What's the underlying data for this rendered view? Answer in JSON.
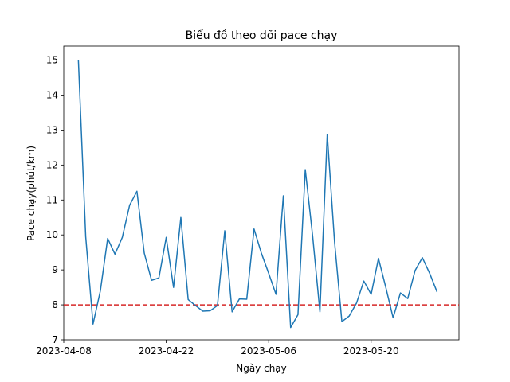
{
  "chart_data": {
    "type": "line",
    "title": "Biểu đồ theo dõi pace chạy",
    "xlabel": "Ngày chạy",
    "ylabel": "Pace chạy(phút/km)",
    "x_ticks": [
      "2023-04-08",
      "2023-04-22",
      "2023-05-06",
      "2023-05-20"
    ],
    "y_ticks": [
      7,
      8,
      9,
      10,
      11,
      12,
      13,
      14,
      15
    ],
    "xlim": [
      "2023-04-08",
      "2023-06-01"
    ],
    "ylim": [
      7,
      15.4
    ],
    "grid": false,
    "line_color": "#1f77b4",
    "reference_line": {
      "y": 8,
      "color": "#d62728",
      "style": "dashed"
    },
    "series": [
      {
        "x": [
          "2023-04-10",
          "2023-04-11",
          "2023-04-12",
          "2023-04-13",
          "2023-04-14",
          "2023-04-15",
          "2023-04-16",
          "2023-04-17",
          "2023-04-18",
          "2023-04-19",
          "2023-04-20",
          "2023-04-21",
          "2023-04-22",
          "2023-04-23",
          "2023-04-24",
          "2023-04-25",
          "2023-04-26",
          "2023-04-27",
          "2023-04-28",
          "2023-04-29",
          "2023-04-30",
          "2023-05-01",
          "2023-05-02",
          "2023-05-03",
          "2023-05-04",
          "2023-05-05",
          "2023-05-06",
          "2023-05-07",
          "2023-05-08",
          "2023-05-09",
          "2023-05-10",
          "2023-05-11",
          "2023-05-12",
          "2023-05-13",
          "2023-05-14",
          "2023-05-15",
          "2023-05-16",
          "2023-05-17",
          "2023-05-18",
          "2023-05-19",
          "2023-05-20",
          "2023-05-21",
          "2023-05-22",
          "2023-05-23",
          "2023-05-24",
          "2023-05-25",
          "2023-05-26",
          "2023-05-27",
          "2023-05-28",
          "2023-05-29"
        ],
        "values": [
          15.0,
          9.95,
          7.45,
          8.4,
          9.9,
          9.45,
          9.93,
          10.85,
          11.25,
          9.48,
          8.7,
          8.77,
          9.93,
          8.5,
          10.5,
          8.15,
          7.98,
          7.82,
          7.83,
          7.98,
          10.12,
          7.8,
          8.17,
          8.16,
          10.17,
          9.48,
          8.9,
          8.3,
          11.12,
          7.35,
          7.72,
          11.87,
          9.98,
          7.8,
          12.88,
          9.8,
          7.52,
          7.68,
          8.05,
          8.68,
          8.3,
          9.33,
          8.5,
          7.63,
          8.34,
          8.18,
          8.98,
          9.35,
          8.9,
          8.37
        ]
      }
    ]
  }
}
